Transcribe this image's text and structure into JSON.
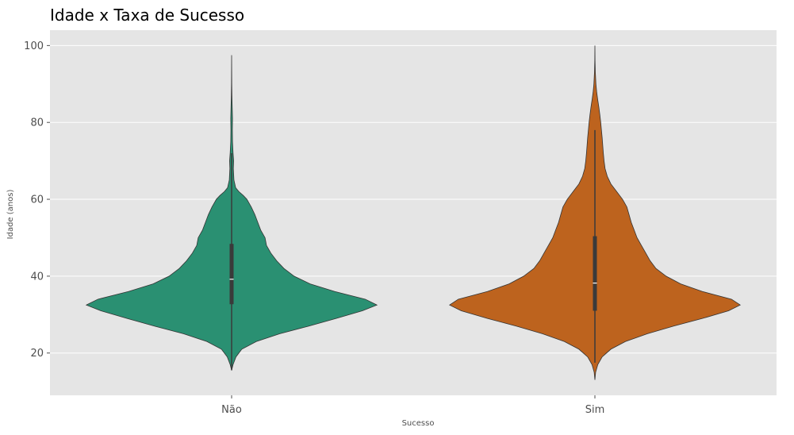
{
  "chart_data": {
    "type": "violin",
    "title": "Idade x Taxa de Sucesso",
    "xlabel": "Sucesso",
    "ylabel": "Idade (anos)",
    "categories": [
      "Não",
      "Sim"
    ],
    "ylim": [
      9,
      104
    ],
    "yticks": [
      20,
      40,
      60,
      80,
      100
    ],
    "grid": true,
    "colors": [
      "#2a9072",
      "#bd631e"
    ],
    "background": "#e5e5e5",
    "violins": [
      {
        "category": "Não",
        "min": 15.5,
        "max": 97.5,
        "q1": 32.7,
        "median": 39.2,
        "q3": 48.4,
        "whisker_low": 15.5,
        "whisker_high": 72.0,
        "density": [
          [
            15.5,
            0.0
          ],
          [
            17,
            0.01
          ],
          [
            19,
            0.03
          ],
          [
            21,
            0.07
          ],
          [
            23,
            0.17
          ],
          [
            25,
            0.33
          ],
          [
            27,
            0.53
          ],
          [
            29,
            0.72
          ],
          [
            31,
            0.9
          ],
          [
            32.5,
            1.0
          ],
          [
            34,
            0.92
          ],
          [
            36,
            0.71
          ],
          [
            38,
            0.54
          ],
          [
            40,
            0.43
          ],
          [
            42,
            0.36
          ],
          [
            44,
            0.31
          ],
          [
            46,
            0.27
          ],
          [
            48,
            0.24
          ],
          [
            50,
            0.23
          ],
          [
            52,
            0.2
          ],
          [
            54,
            0.18
          ],
          [
            56,
            0.16
          ],
          [
            58,
            0.135
          ],
          [
            60,
            0.105
          ],
          [
            61,
            0.08
          ],
          [
            62,
            0.05
          ],
          [
            63,
            0.028
          ],
          [
            65,
            0.016
          ],
          [
            68,
            0.012
          ],
          [
            70,
            0.014
          ],
          [
            72,
            0.01
          ],
          [
            75,
            0.006
          ],
          [
            78,
            0.005
          ],
          [
            81,
            0.006
          ],
          [
            84,
            0.004
          ],
          [
            87,
            0.002
          ],
          [
            90,
            0.001
          ],
          [
            97.5,
            0.0
          ]
        ]
      },
      {
        "category": "Sim",
        "min": 13.0,
        "max": 100.0,
        "q1": 31.0,
        "median": 38.2,
        "q3": 50.4,
        "whisker_low": 17.5,
        "whisker_high": 78.0,
        "density": [
          [
            13.0,
            0.0
          ],
          [
            15,
            0.005
          ],
          [
            17,
            0.02
          ],
          [
            19,
            0.05
          ],
          [
            21,
            0.11
          ],
          [
            23,
            0.21
          ],
          [
            25,
            0.36
          ],
          [
            27,
            0.54
          ],
          [
            29,
            0.74
          ],
          [
            31,
            0.92
          ],
          [
            32.5,
            1.0
          ],
          [
            34,
            0.94
          ],
          [
            36,
            0.74
          ],
          [
            38,
            0.59
          ],
          [
            40,
            0.49
          ],
          [
            42,
            0.42
          ],
          [
            44,
            0.38
          ],
          [
            46,
            0.35
          ],
          [
            48,
            0.32
          ],
          [
            50,
            0.29
          ],
          [
            52,
            0.27
          ],
          [
            54,
            0.25
          ],
          [
            56,
            0.235
          ],
          [
            58,
            0.22
          ],
          [
            60,
            0.19
          ],
          [
            62,
            0.15
          ],
          [
            64,
            0.11
          ],
          [
            66,
            0.085
          ],
          [
            68,
            0.07
          ],
          [
            70,
            0.063
          ],
          [
            72,
            0.058
          ],
          [
            74,
            0.054
          ],
          [
            76,
            0.05
          ],
          [
            78,
            0.045
          ],
          [
            80,
            0.04
          ],
          [
            82,
            0.034
          ],
          [
            84,
            0.027
          ],
          [
            86,
            0.019
          ],
          [
            88,
            0.012
          ],
          [
            90,
            0.007
          ],
          [
            93,
            0.003
          ],
          [
            96,
            0.001
          ],
          [
            100,
            0.0
          ]
        ]
      }
    ]
  }
}
